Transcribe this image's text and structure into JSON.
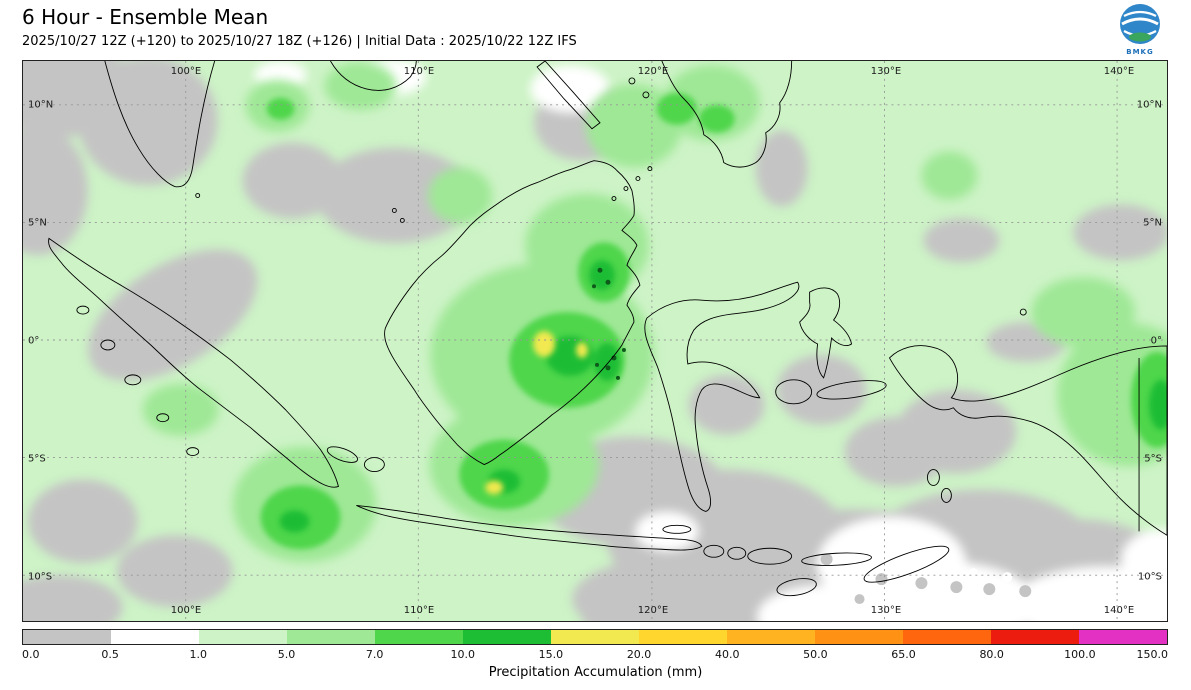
{
  "header": {
    "title": "6 Hour - Ensemble Mean",
    "subtitle": "2025/10/27 12Z (+120) to 2025/10/27 18Z (+126) | Initial Data : 2025/10/22 12Z IFS",
    "logo_text": "BMKG"
  },
  "map": {
    "lon_labels": [
      "100°E",
      "110°E",
      "120°E",
      "130°E",
      "140°E"
    ],
    "lat_labels": [
      "10°N",
      "5°N",
      "0°",
      "5°S",
      "10°S"
    ]
  },
  "colorbar": {
    "label": "Precipitation Accumulation (mm)",
    "ticks": [
      "0.0",
      "0.5",
      "1.0",
      "5.0",
      "7.0",
      "10.0",
      "15.0",
      "20.0",
      "40.0",
      "50.0",
      "65.0",
      "80.0",
      "100.0",
      "150.0"
    ],
    "colors": [
      "#c4c4c4",
      "#ffffff",
      "#cdf3c6",
      "#9fe896",
      "#4fd64b",
      "#1dbd34",
      "#f1e94f",
      "#ffd62e",
      "#ffb321",
      "#ff9215",
      "#ff660d",
      "#ec1c0f",
      "#e331c4"
    ]
  },
  "chart_data": {
    "type": "heatmap",
    "title": "6 Hour - Ensemble Mean",
    "variable": "Precipitation Accumulation (mm)",
    "valid_period": "2025/10/27 12Z (+120) to 2025/10/27 18Z (+126)",
    "initial_data": "2025/10/22 12Z IFS",
    "x_ticks": [
      "100°E",
      "110°E",
      "120°E",
      "130°E",
      "140°E"
    ],
    "y_ticks": [
      "10°N",
      "5°N",
      "0°",
      "5°S",
      "10°S"
    ],
    "levels_mm": [
      0.0,
      0.5,
      1.0,
      5.0,
      7.0,
      10.0,
      15.0,
      20.0,
      40.0,
      50.0,
      65.0,
      80.0,
      100.0,
      150.0
    ],
    "palette": [
      "#c4c4c4",
      "#ffffff",
      "#cdf3c6",
      "#9fe896",
      "#4fd64b",
      "#1dbd34",
      "#f1e94f",
      "#ffd62e",
      "#ffb321",
      "#ff9215",
      "#ff660d",
      "#ec1c0f",
      "#e331c4"
    ],
    "legend_position": "bottom",
    "grid": "dashed lat/lon gridlines every 5 deg lat, 10 deg lon",
    "notable_features": [
      {
        "area": "central Borneo (Kalimantan)",
        "approx_value_mm": "15-20 local yellow maximum"
      },
      {
        "area": "southern Borneo / Java Sea",
        "approx_value_mm": "7-15"
      },
      {
        "area": "southern Sumatra",
        "approx_value_mm": "7-15"
      },
      {
        "area": "northeast Borneo",
        "approx_value_mm": "10-15 with dark speckled cores"
      },
      {
        "area": "eastern Papua near 140°E",
        "approx_value_mm": "5-10"
      },
      {
        "area": "Banda / Arafura Sea and south-central seas",
        "approx_value_mm": "0-1 (dry, gray-white)"
      },
      {
        "area": "most remaining maritime continent",
        "approx_value_mm": "1-5 (pale green)"
      }
    ]
  }
}
